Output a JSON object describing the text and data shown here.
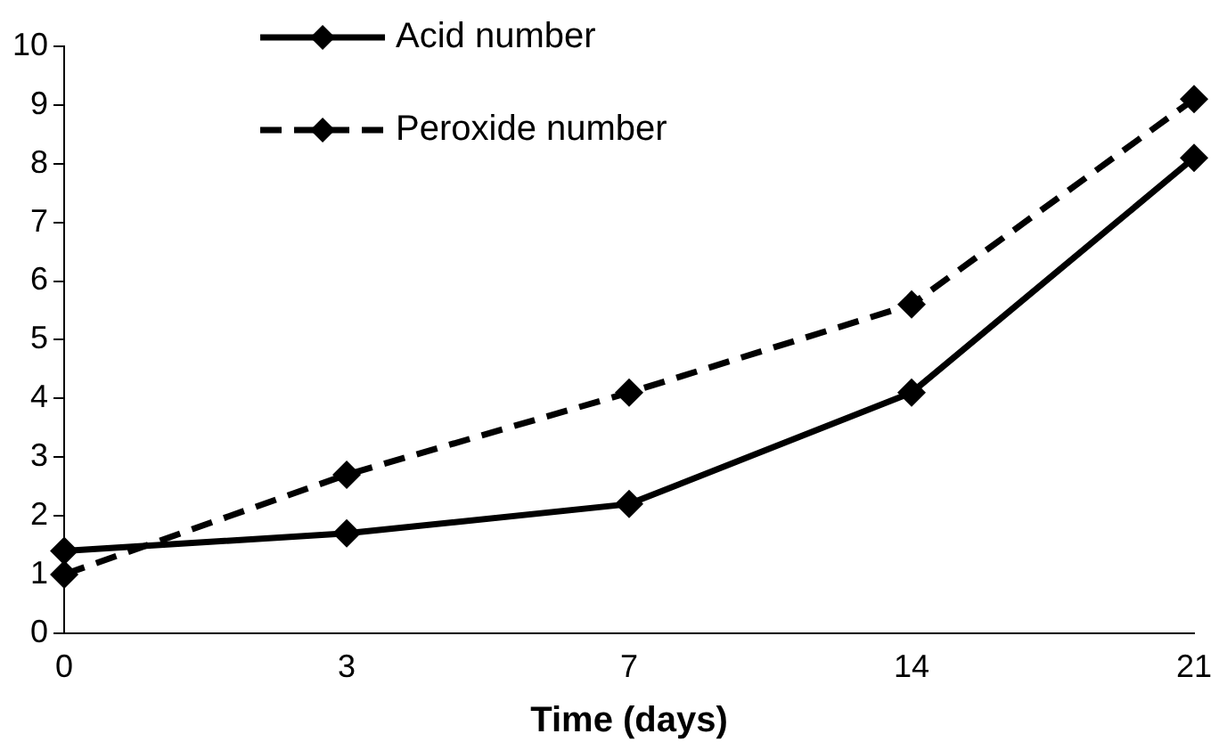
{
  "chart_data": {
    "type": "line",
    "xlabel": "Time (days)",
    "categories": [
      "0",
      "3",
      "7",
      "14",
      "21"
    ],
    "series": [
      {
        "name": "Acid number",
        "color": "#000000",
        "values": [
          1.4,
          1.7,
          2.2,
          4.1,
          8.1
        ],
        "line_style": "solid"
      },
      {
        "name": "Peroxide number",
        "color": "#000000",
        "values": [
          1.0,
          2.7,
          4.1,
          5.6,
          9.1
        ],
        "line_style": "dashed"
      }
    ],
    "ylim": [
      0,
      10
    ],
    "yticks": [
      0,
      1,
      2,
      3,
      4,
      5,
      6,
      7,
      8,
      9,
      10
    ],
    "grid": false,
    "legend": "top",
    "marker": "diamond"
  }
}
